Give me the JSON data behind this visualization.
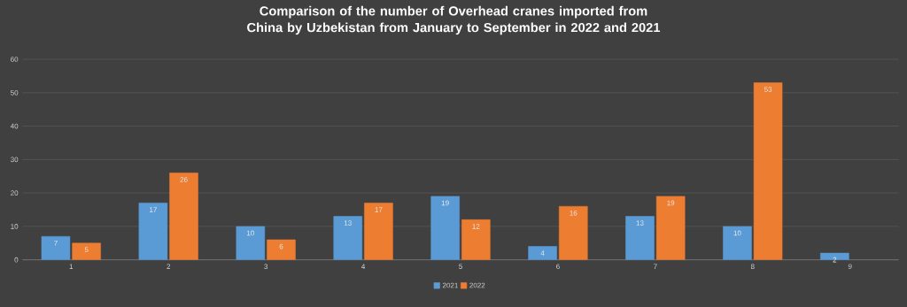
{
  "chart_data": {
    "type": "bar",
    "title": "Comparison of the number of Overhead cranes imported from China by Uzbekistan from January to September in 2022 and 2021",
    "categories": [
      "1",
      "2",
      "3",
      "4",
      "5",
      "6",
      "7",
      "8",
      "9"
    ],
    "series": [
      {
        "name": "2021",
        "color": "#5b9bd5",
        "values": [
          7,
          17,
          10,
          13,
          19,
          4,
          13,
          10,
          2
        ]
      },
      {
        "name": "2022",
        "color": "#ed7d31",
        "values": [
          5,
          26,
          6,
          17,
          12,
          16,
          19,
          53,
          null
        ]
      }
    ],
    "ylim": [
      0,
      60
    ],
    "yticks": [
      0,
      10,
      20,
      30,
      40,
      50,
      60
    ],
    "grid": "y",
    "legend": "bottom",
    "data_labels": true
  }
}
